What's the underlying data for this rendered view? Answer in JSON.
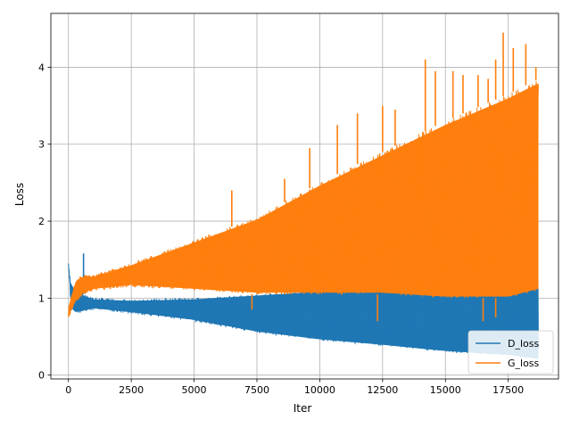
{
  "chart_data": {
    "type": "line",
    "title": "",
    "xlabel": "Iter",
    "ylabel": "Loss",
    "xlim": [
      -700,
      19500
    ],
    "ylim": [
      -0.05,
      4.7
    ],
    "xticks": [
      0,
      2500,
      5000,
      7500,
      10000,
      12500,
      15000,
      17500
    ],
    "xtick_labels": [
      "0",
      "2500",
      "5000",
      "7500",
      "10000",
      "12500",
      "15000",
      "17500"
    ],
    "yticks": [
      0,
      1,
      2,
      3,
      4
    ],
    "ytick_labels": [
      "0",
      "1",
      "2",
      "3",
      "4"
    ],
    "grid": true,
    "legend_position": "lower-right",
    "series": [
      {
        "name": "D_loss",
        "color": "#1f77b4",
        "x": [
          0,
          100,
          300,
          600,
          1000,
          2500,
          5000,
          7500,
          10000,
          12500,
          15000,
          17500,
          18700
        ],
        "lower": [
          1.4,
          0.85,
          0.8,
          0.82,
          0.85,
          0.8,
          0.7,
          0.55,
          0.45,
          0.38,
          0.3,
          0.25,
          0.2
        ],
        "upper": [
          1.45,
          1.2,
          1.1,
          1.05,
          1.0,
          0.98,
          1.0,
          1.05,
          1.1,
          1.15,
          1.2,
          1.25,
          1.25
        ],
        "spikes": [
          {
            "x": 600,
            "y": 1.58
          },
          {
            "x": 14300,
            "y": 1.55
          },
          {
            "x": 17300,
            "y": 1.52
          },
          {
            "x": 17700,
            "y": 1.5
          }
        ]
      },
      {
        "name": "G_loss",
        "color": "#ff7f0e",
        "x": [
          0,
          300,
          600,
          1000,
          2500,
          5000,
          7500,
          10000,
          12500,
          15000,
          17500,
          18700
        ],
        "lower": [
          0.75,
          0.95,
          1.05,
          1.1,
          1.15,
          1.1,
          1.05,
          1.05,
          1.05,
          1.0,
          1.0,
          1.1
        ],
        "upper": [
          0.9,
          1.25,
          1.3,
          1.3,
          1.45,
          1.75,
          2.05,
          2.5,
          2.9,
          3.3,
          3.65,
          3.85
        ],
        "spikes": [
          {
            "x": 6500,
            "y": 2.4
          },
          {
            "x": 8600,
            "y": 2.55
          },
          {
            "x": 9600,
            "y": 2.95
          },
          {
            "x": 10700,
            "y": 3.25
          },
          {
            "x": 11500,
            "y": 3.4
          },
          {
            "x": 12500,
            "y": 3.5
          },
          {
            "x": 13000,
            "y": 3.45
          },
          {
            "x": 14200,
            "y": 4.1
          },
          {
            "x": 14600,
            "y": 3.95
          },
          {
            "x": 15300,
            "y": 3.95
          },
          {
            "x": 15700,
            "y": 3.9
          },
          {
            "x": 16300,
            "y": 3.9
          },
          {
            "x": 16700,
            "y": 3.85
          },
          {
            "x": 17000,
            "y": 4.1
          },
          {
            "x": 17300,
            "y": 4.45
          },
          {
            "x": 17700,
            "y": 4.25
          },
          {
            "x": 18200,
            "y": 4.3
          },
          {
            "x": 18600,
            "y": 4.0
          }
        ],
        "dips": [
          {
            "x": 7300,
            "y": 0.85
          },
          {
            "x": 12300,
            "y": 0.7
          },
          {
            "x": 16500,
            "y": 0.7
          },
          {
            "x": 17000,
            "y": 0.75
          }
        ]
      }
    ]
  }
}
